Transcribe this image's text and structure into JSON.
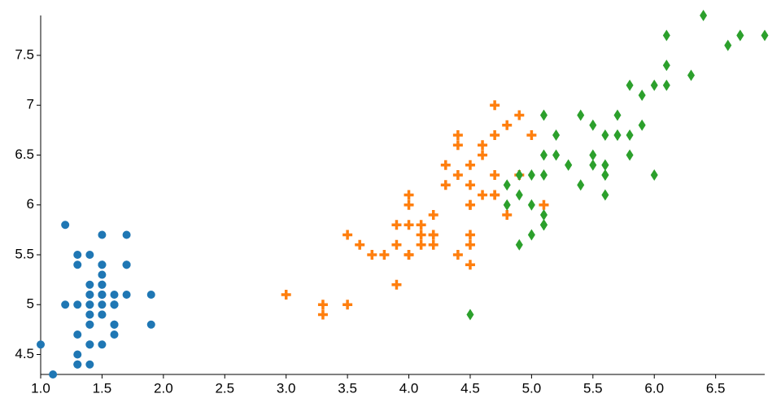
{
  "chart_data": {
    "type": "scatter",
    "xlim": [
      1.0,
      6.9
    ],
    "ylim": [
      4.3,
      7.9
    ],
    "xticks": [
      {
        "value": 1.0,
        "label": "1.0"
      },
      {
        "value": 1.5,
        "label": "1.5"
      },
      {
        "value": 2.0,
        "label": "2.0"
      },
      {
        "value": 2.5,
        "label": "2.5"
      },
      {
        "value": 3.0,
        "label": "3.0"
      },
      {
        "value": 3.5,
        "label": "3.5"
      },
      {
        "value": 4.0,
        "label": "4.0"
      },
      {
        "value": 4.5,
        "label": "4.5"
      },
      {
        "value": 5.0,
        "label": "5.0"
      },
      {
        "value": 5.5,
        "label": "5.5"
      },
      {
        "value": 6.0,
        "label": "6.0"
      },
      {
        "value": 6.5,
        "label": "6.5"
      }
    ],
    "yticks": [
      4.5,
      5,
      5.5,
      6,
      6.5,
      7,
      7.5
    ],
    "ytick_labels_override": null,
    "grid": false,
    "series": [
      {
        "color": "#1f77b4",
        "marker": "circle",
        "x": [
          1.4,
          1.4,
          1.3,
          1.5,
          1.4,
          1.7,
          1.4,
          1.5,
          1.4,
          1.5,
          1.5,
          1.6,
          1.4,
          1.1,
          1.2,
          1.5,
          1.3,
          1.4,
          1.7,
          1.5,
          1.7,
          1.5,
          1.0,
          1.7,
          1.9,
          1.6,
          1.6,
          1.5,
          1.4,
          1.6,
          1.6,
          1.5,
          1.5,
          1.4,
          1.5,
          1.2,
          1.3,
          1.4,
          1.3,
          1.5,
          1.3,
          1.3,
          1.3,
          1.6,
          1.9,
          1.4,
          1.6,
          1.4,
          1.5,
          1.4
        ],
        "values": [
          5.1,
          4.9,
          4.7,
          4.6,
          5.0,
          5.4,
          4.6,
          5.0,
          4.4,
          4.9,
          5.4,
          4.8,
          4.8,
          4.3,
          5.8,
          5.7,
          5.4,
          5.1,
          5.7,
          5.1,
          5.4,
          5.1,
          4.6,
          5.1,
          4.8,
          5.0,
          5.0,
          5.2,
          5.2,
          4.7,
          4.8,
          5.4,
          5.2,
          5.5,
          4.9,
          5.0,
          5.5,
          4.9,
          4.4,
          5.1,
          5.0,
          4.5,
          4.4,
          5.0,
          5.1,
          4.8,
          5.1,
          4.6,
          5.3,
          5.0
        ]
      },
      {
        "color": "#ff7f0e",
        "marker": "plus",
        "x": [
          4.7,
          4.5,
          4.9,
          4.0,
          4.6,
          4.5,
          4.7,
          3.3,
          4.6,
          3.9,
          3.5,
          4.2,
          4.0,
          4.7,
          3.6,
          4.4,
          4.5,
          4.1,
          4.5,
          3.9,
          4.8,
          4.0,
          4.9,
          4.7,
          4.3,
          4.4,
          4.8,
          5.0,
          4.5,
          3.5,
          3.8,
          3.7,
          3.9,
          5.1,
          4.5,
          4.5,
          4.7,
          4.4,
          4.1,
          4.0,
          4.4,
          4.6,
          4.0,
          3.3,
          4.2,
          4.2,
          4.2,
          4.3,
          3.0,
          4.1
        ],
        "values": [
          7.0,
          6.4,
          6.9,
          5.5,
          6.5,
          5.7,
          6.3,
          4.9,
          6.6,
          5.2,
          5.0,
          5.9,
          6.0,
          6.1,
          5.6,
          6.7,
          5.6,
          5.8,
          6.2,
          5.6,
          5.9,
          6.1,
          6.3,
          6.1,
          6.4,
          6.6,
          6.8,
          6.7,
          6.0,
          5.7,
          5.5,
          5.5,
          5.8,
          6.0,
          5.4,
          6.0,
          6.7,
          6.3,
          5.6,
          5.5,
          5.5,
          6.1,
          5.8,
          5.0,
          5.6,
          5.7,
          5.7,
          6.2,
          5.1,
          5.7
        ]
      },
      {
        "color": "#2ca02c",
        "marker": "diamond",
        "x": [
          6.0,
          5.1,
          5.9,
          5.6,
          5.8,
          6.6,
          4.5,
          6.3,
          5.8,
          6.1,
          5.1,
          5.3,
          5.5,
          5.0,
          5.1,
          5.3,
          5.5,
          6.7,
          6.9,
          5.0,
          5.7,
          4.9,
          6.7,
          4.9,
          5.7,
          6.0,
          4.8,
          4.9,
          5.6,
          5.8,
          6.1,
          6.4,
          5.6,
          5.1,
          5.6,
          6.1,
          5.6,
          5.5,
          4.8,
          5.4,
          5.6,
          5.1,
          5.1,
          5.9,
          5.7,
          5.2,
          5.0,
          5.2,
          5.4,
          5.1
        ],
        "values": [
          6.3,
          5.8,
          7.1,
          6.3,
          6.5,
          7.6,
          4.9,
          7.3,
          6.7,
          7.2,
          6.5,
          6.4,
          6.8,
          5.7,
          5.8,
          6.4,
          6.5,
          7.7,
          7.7,
          6.0,
          6.9,
          5.6,
          7.7,
          6.3,
          6.7,
          7.2,
          6.2,
          6.1,
          6.4,
          7.2,
          7.4,
          7.9,
          6.4,
          6.3,
          6.1,
          7.7,
          6.3,
          6.4,
          6.0,
          6.9,
          6.7,
          6.9,
          5.8,
          6.8,
          6.7,
          6.7,
          6.3,
          6.5,
          6.2,
          5.9
        ]
      }
    ]
  }
}
